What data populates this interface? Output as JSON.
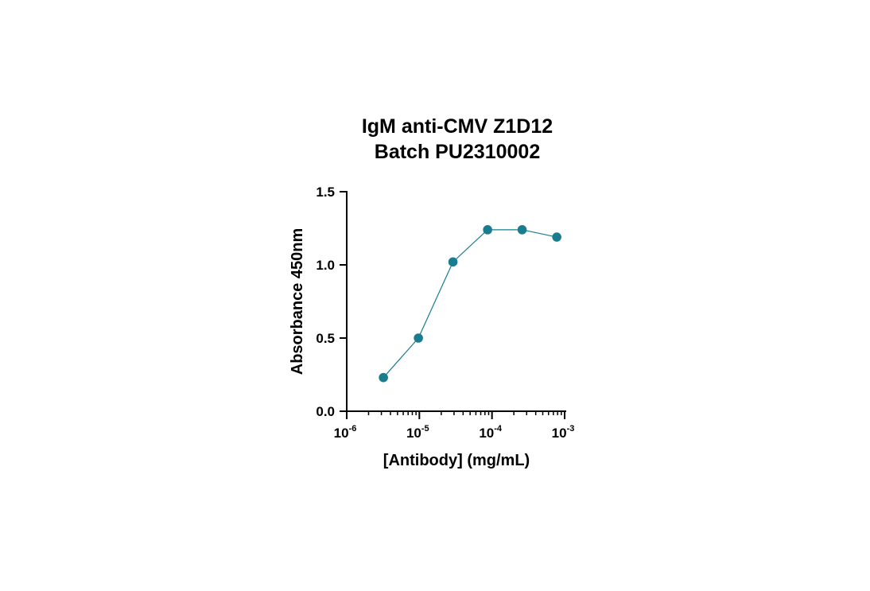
{
  "chart_data": {
    "type": "line",
    "title_lines": [
      "IgM anti-CMV Z1D12",
      "Batch PU2310002"
    ],
    "xlabel": "[Antibody] (mg/mL)",
    "ylabel": "Absorbance 450nm",
    "xscale": "log",
    "xlim": [
      1e-06,
      0.001
    ],
    "ylim": [
      0,
      1.5
    ],
    "x_ticks": [
      {
        "value": 1e-06,
        "base": "10",
        "exp": "-6"
      },
      {
        "value": 1e-05,
        "base": "10",
        "exp": "-5"
      },
      {
        "value": 0.0001,
        "base": "10",
        "exp": "-4"
      },
      {
        "value": 0.001,
        "base": "10",
        "exp": "-3"
      }
    ],
    "y_ticks": [
      {
        "value": 0,
        "label": "0.0"
      },
      {
        "value": 0.5,
        "label": "0.5"
      },
      {
        "value": 1.0,
        "label": "1.0"
      },
      {
        "value": 1.5,
        "label": "1.5"
      }
    ],
    "series": [
      {
        "x": [
          3.2e-06,
          9.7e-06,
          2.9e-05,
          8.7e-05,
          0.00026,
          0.00078
        ],
        "y": [
          0.23,
          0.5,
          1.02,
          1.24,
          1.24,
          1.19
        ]
      }
    ],
    "grid": false,
    "legend": "none",
    "colors": {
      "series": "#1a7d8f",
      "axis": "#000000"
    }
  }
}
